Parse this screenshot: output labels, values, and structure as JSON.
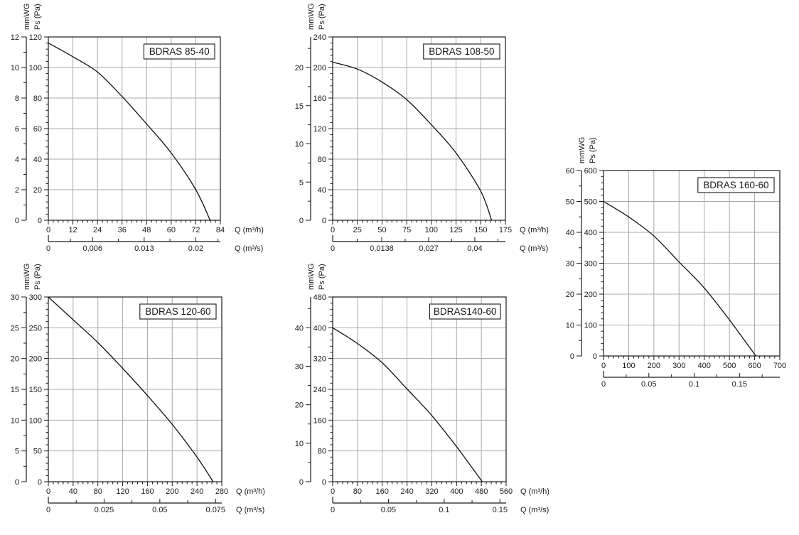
{
  "page": {
    "background": "#ffffff",
    "description_colors": {
      "axis": "#1a1a1a",
      "grid": "#a9a9a9",
      "curve": "#111111",
      "text": "#1a1a1a",
      "title_box_bg": "#ffffff",
      "title_box_border": "#1a1a1a"
    }
  },
  "chart_data": [
    {
      "id": "bdras-85-40",
      "type": "line",
      "title": "BDRAS 85-40",
      "ylabel_left": "mmWG",
      "ylabel_right": "Ps (Pa)",
      "xlabel_primary": "Q (m³/h)",
      "xlabel_secondary": "Q (m³/s)",
      "x_unit_labels_visible": true,
      "grid": true,
      "xlim": [
        0,
        84
      ],
      "x_major_ticks": [
        0,
        12,
        24,
        36,
        48,
        60,
        72,
        84
      ],
      "x_minor_step": 2.4,
      "ylim_pa": [
        0,
        120
      ],
      "y_major_ticks_pa": [
        0,
        20,
        40,
        60,
        80,
        100,
        120
      ],
      "y_minor_step_pa": 4,
      "mmwg_axis_max": 12,
      "mmwg_major_ticks": [
        0,
        2,
        4,
        6,
        8,
        10,
        12
      ],
      "mmwg_minor_step": 1,
      "x2_axis_max": 0.023333,
      "x2_ticks": [
        {
          "value": 0,
          "label": "0"
        },
        {
          "value": 0.006,
          "label": "0,006"
        },
        {
          "value": 0.013,
          "label": "0.013"
        },
        {
          "value": 0.02,
          "label": "0.02"
        }
      ],
      "x2_minor_values": [
        0.003,
        0.0095,
        0.0165,
        0.023
      ],
      "curve_q_pa": [
        [
          0,
          116
        ],
        [
          12,
          107
        ],
        [
          24,
          97
        ],
        [
          36,
          81
        ],
        [
          48,
          63
        ],
        [
          60,
          44
        ],
        [
          72,
          20
        ],
        [
          79,
          0
        ]
      ]
    },
    {
      "id": "bdras-108-50",
      "type": "line",
      "title": "BDRAS 108-50",
      "ylabel_left": "mmWG",
      "ylabel_right": "Ps (Pa)",
      "xlabel_primary": "Q (m³/h)",
      "xlabel_secondary": "Q (m³/s)",
      "x_unit_labels_visible": true,
      "grid": true,
      "xlim": [
        0,
        175
      ],
      "x_major_ticks": [
        0,
        25,
        50,
        75,
        100,
        125,
        150,
        175
      ],
      "x_minor_step": 5,
      "ylim_pa": [
        0,
        240
      ],
      "y_major_ticks_pa": [
        0,
        40,
        80,
        120,
        160,
        200,
        240
      ],
      "y_minor_step_pa": 8,
      "mmwg_axis_max": 24,
      "mmwg_major_ticks": [
        0,
        5,
        10,
        15,
        20
      ],
      "mmwg_minor_step": 2.5,
      "x2_axis_max": 0.048611,
      "x2_ticks": [
        {
          "value": 0,
          "label": "0"
        },
        {
          "value": 0.0138,
          "label": "0,0138"
        },
        {
          "value": 0.027,
          "label": "0,027"
        },
        {
          "value": 0.04,
          "label": "0,04"
        }
      ],
      "x2_minor_values": [
        0.0069,
        0.0204,
        0.0335,
        0.0465
      ],
      "curve_q_pa": [
        [
          0,
          207
        ],
        [
          25,
          198
        ],
        [
          50,
          181
        ],
        [
          75,
          158
        ],
        [
          100,
          125
        ],
        [
          125,
          88
        ],
        [
          150,
          38
        ],
        [
          161,
          0
        ]
      ]
    },
    {
      "id": "bdras-160-60",
      "type": "line",
      "title": "BDRAS 160-60",
      "ylabel_left": "mmWG",
      "ylabel_right": "Ps (Pa)",
      "xlabel_primary": "",
      "xlabel_secondary": "",
      "x_unit_labels_visible": false,
      "grid": true,
      "xlim": [
        0,
        700
      ],
      "x_major_ticks": [
        0,
        100,
        200,
        300,
        400,
        500,
        600,
        700
      ],
      "x_minor_step": 20,
      "ylim_pa": [
        0,
        600
      ],
      "y_major_ticks_pa": [
        0,
        100,
        200,
        300,
        400,
        500,
        600
      ],
      "y_minor_step_pa": 20,
      "mmwg_axis_max": 60,
      "mmwg_major_ticks": [
        0,
        10,
        20,
        30,
        40,
        50,
        60
      ],
      "mmwg_minor_step": 5,
      "x2_axis_max": 0.194444,
      "x2_ticks": [
        {
          "value": 0,
          "label": "0"
        },
        {
          "value": 0.05,
          "label": "0.05"
        },
        {
          "value": 0.1,
          "label": "0.1"
        },
        {
          "value": 0.15,
          "label": "0.15"
        }
      ],
      "x2_minor_values": [
        0.025,
        0.075,
        0.125,
        0.175
      ],
      "curve_q_pa": [
        [
          0,
          500
        ],
        [
          100,
          450
        ],
        [
          200,
          388
        ],
        [
          300,
          304
        ],
        [
          400,
          220
        ],
        [
          500,
          117
        ],
        [
          605,
          0
        ]
      ]
    },
    {
      "id": "bdras-120-60",
      "type": "line",
      "title": "BDRAS 120-60",
      "ylabel_left": "mmWG",
      "ylabel_right": "Ps (Pa)",
      "xlabel_primary": "Q (m³/h)",
      "xlabel_secondary": "Q (m³/s)",
      "x_unit_labels_visible": true,
      "grid": true,
      "xlim": [
        0,
        280
      ],
      "x_major_ticks": [
        0,
        40,
        80,
        120,
        160,
        200,
        240,
        280
      ],
      "x_minor_step": 8,
      "ylim_pa": [
        0,
        300
      ],
      "y_major_ticks_pa": [
        0,
        50,
        100,
        150,
        200,
        250,
        300
      ],
      "y_minor_step_pa": 10,
      "mmwg_axis_max": 30,
      "mmwg_major_ticks": [
        0,
        5,
        10,
        15,
        20,
        25,
        30
      ],
      "mmwg_minor_step": 2.5,
      "x2_axis_max": 0.077778,
      "x2_ticks": [
        {
          "value": 0,
          "label": "0"
        },
        {
          "value": 0.025,
          "label": "0.025"
        },
        {
          "value": 0.05,
          "label": "0.05"
        },
        {
          "value": 0.075,
          "label": "0.075"
        }
      ],
      "x2_minor_values": [
        0.0125,
        0.0375,
        0.0625
      ],
      "curve_q_pa": [
        [
          0,
          300
        ],
        [
          40,
          263
        ],
        [
          80,
          226
        ],
        [
          120,
          184
        ],
        [
          160,
          140
        ],
        [
          200,
          93
        ],
        [
          240,
          40
        ],
        [
          266,
          0
        ]
      ]
    },
    {
      "id": "bdras-140-60",
      "type": "line",
      "title": "BDRAS140-60",
      "ylabel_left": "mmWG",
      "ylabel_right": "Ps (Pa)",
      "xlabel_primary": "Q (m³/h)",
      "xlabel_secondary": "Q (m³/s)",
      "x_unit_labels_visible": true,
      "grid": true,
      "xlim": [
        0,
        560
      ],
      "x_major_ticks": [
        0,
        80,
        160,
        240,
        320,
        400,
        480,
        560
      ],
      "x_minor_step": 16,
      "ylim_pa": [
        0,
        480
      ],
      "y_major_ticks_pa": [
        0,
        80,
        160,
        240,
        320,
        400,
        480
      ],
      "y_minor_step_pa": 16,
      "mmwg_axis_max": 48,
      "mmwg_major_ticks": [
        0,
        10,
        20,
        30,
        40
      ],
      "mmwg_minor_step": 5,
      "x2_axis_max": 0.155556,
      "x2_ticks": [
        {
          "value": 0,
          "label": "0"
        },
        {
          "value": 0.05,
          "label": "0.05"
        },
        {
          "value": 0.1,
          "label": "0.1"
        },
        {
          "value": 0.15,
          "label": "0.15"
        }
      ],
      "x2_minor_values": [
        0.025,
        0.075,
        0.125
      ],
      "curve_q_pa": [
        [
          0,
          400
        ],
        [
          80,
          359
        ],
        [
          160,
          309
        ],
        [
          240,
          241
        ],
        [
          320,
          172
        ],
        [
          400,
          91
        ],
        [
          483,
          0
        ]
      ]
    }
  ]
}
